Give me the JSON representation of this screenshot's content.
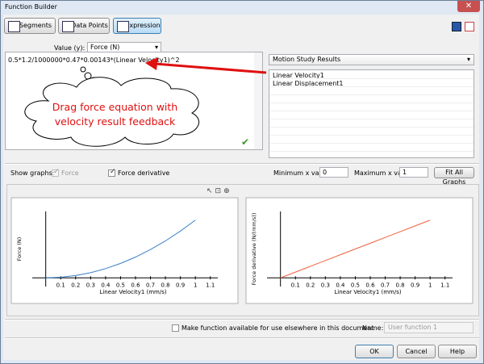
{
  "window": {
    "title": "Function Builder"
  },
  "toolbar": {
    "tabs": [
      {
        "label": "Segments"
      },
      {
        "label": "Data Points"
      },
      {
        "label": "Expression",
        "active": true
      }
    ]
  },
  "value_selector": {
    "label": "Value (y):",
    "selected": "Force (N)"
  },
  "expression": "0.5*1.2/1000000*0.47*0.00143*(Linear Velocity1)^2",
  "callout": "Drag force equation with velocity result feedback",
  "results": {
    "source": "Motion Study Results",
    "items": [
      "Linear Velocity1",
      "Linear Displacement1"
    ]
  },
  "graph_options": {
    "label": "Show graphs:",
    "options": [
      {
        "label": "Force",
        "checked": true,
        "enabled": false
      },
      {
        "label": "Force derivative",
        "checked": true,
        "enabled": true
      }
    ],
    "min_label": "Minimum x value:",
    "min_value": 0,
    "max_label": "Maximum x value:",
    "max_value": 1,
    "fit_button": "Fit All Graphs"
  },
  "charts": [
    {
      "type": "line",
      "y_label": "Force (N)",
      "x_label": "Linear Velocity1 (mm/s)",
      "color": "#3a7fc8",
      "x": [
        0,
        0.1,
        0.2,
        0.3,
        0.4,
        0.5,
        0.6,
        0.7,
        0.8,
        0.9,
        1
      ],
      "values": [
        0,
        0.01,
        0.04,
        0.09,
        0.16,
        0.25,
        0.36,
        0.49,
        0.64,
        0.81,
        1
      ],
      "xlim": [
        -0.09,
        1.15
      ],
      "ylim": [
        -0.15,
        1.15
      ],
      "xticks": [
        0.1,
        0.2,
        0.3,
        0.4,
        0.5,
        0.6,
        0.7,
        0.8,
        0.9,
        1,
        1.1
      ]
    },
    {
      "type": "line",
      "y_label": "Force derivative (N/(mm/s))",
      "x_label": "Linear Velocity1 (mm/s)",
      "color": "#f0603c",
      "x": [
        0,
        0.1,
        0.2,
        0.3,
        0.4,
        0.5,
        0.6,
        0.7,
        0.8,
        0.9,
        1
      ],
      "values": [
        0,
        0.1,
        0.2,
        0.3,
        0.4,
        0.5,
        0.6,
        0.7,
        0.8,
        0.9,
        1
      ],
      "xlim": [
        -0.09,
        1.15
      ],
      "ylim": [
        -0.15,
        1.15
      ],
      "xticks": [
        0.1,
        0.2,
        0.3,
        0.4,
        0.5,
        0.6,
        0.7,
        0.8,
        0.9,
        1,
        1.1
      ]
    }
  ],
  "footer": {
    "share_label": "Make function available for use elsewhere in this document",
    "share_checked": false,
    "name_label": "Name:",
    "name_value": "User function 1",
    "buttons": [
      "OK",
      "Cancel",
      "Help"
    ]
  }
}
